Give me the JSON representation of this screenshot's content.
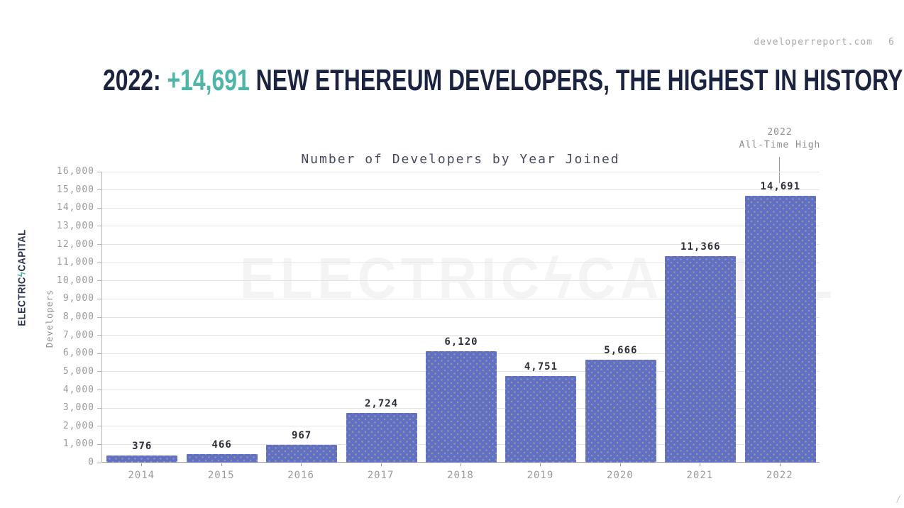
{
  "source": {
    "url_text": "developerreport.com",
    "partial_glyph": "6",
    "corner_mark": "/"
  },
  "headline": {
    "prefix": "2022: ",
    "highlight": "+14,691",
    "suffix": " NEW ETHEREUM DEVELOPERS, THE HIGHEST IN HISTORY"
  },
  "branding": {
    "logo_left": "ELECTRIC",
    "logo_bolt": "ϟ",
    "logo_right": "CAPITAL",
    "watermark_left": "ELECTRIC",
    "watermark_bolt": "ϟ",
    "watermark_right": "CAPITAL"
  },
  "annotation": {
    "line1": "2022",
    "line2": "All-Time High"
  },
  "chart_data": {
    "type": "bar",
    "title": "Number of Developers by Year Joined",
    "xlabel": "",
    "ylabel": "Developers",
    "categories": [
      "2014",
      "2015",
      "2016",
      "2017",
      "2018",
      "2019",
      "2020",
      "2021",
      "2022"
    ],
    "values": [
      376,
      466,
      967,
      2724,
      6120,
      4751,
      5666,
      11366,
      14691
    ],
    "value_labels": [
      "376",
      "466",
      "967",
      "2,724",
      "6,120",
      "4,751",
      "5,666",
      "11,366",
      "14,691"
    ],
    "ylim": [
      0,
      16000
    ],
    "ytick_step": 1000,
    "ytick_labels": [
      "0",
      "1,000",
      "2,000",
      "3,000",
      "4,000",
      "5,000",
      "6,000",
      "7,000",
      "8,000",
      "9,000",
      "10,000",
      "11,000",
      "12,000",
      "13,000",
      "14,000",
      "15,000",
      "16,000"
    ],
    "grid": true,
    "legend": "none",
    "bar_color": "#6270c3",
    "highlight_color": "#4db6a8",
    "title_color": "#1b2340"
  }
}
